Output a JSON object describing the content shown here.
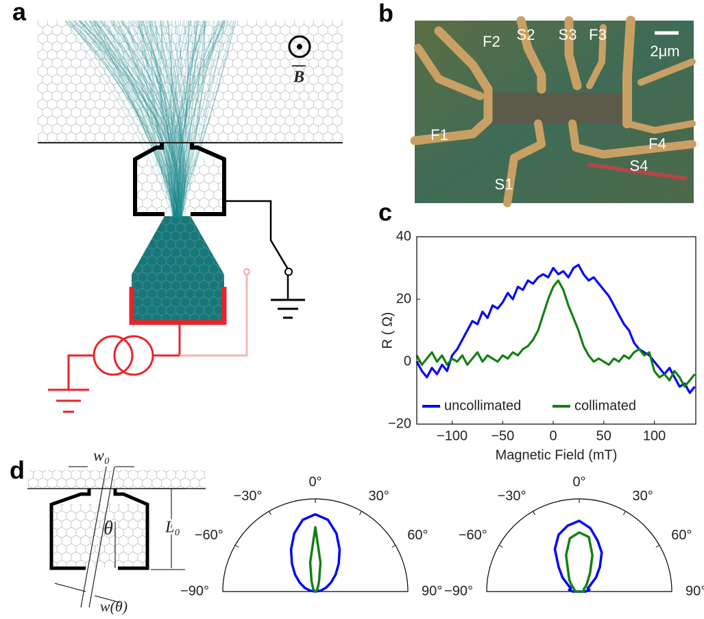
{
  "figure": {
    "panel_labels": [
      "a",
      "b",
      "c",
      "d"
    ],
    "panel_a": {
      "field_label": "B"
    },
    "panel_b": {
      "labels": [
        "F2",
        "S2",
        "S3",
        "F3",
        "F1",
        "F4",
        "S4",
        "S1"
      ],
      "scale_bar": "2μm"
    },
    "panel_d": {
      "width_top": "w₀",
      "length": "L₀",
      "angle": "θ",
      "width_angle": "w(θ)"
    }
  },
  "chart_data": [
    {
      "type": "line",
      "x_label": "Magnetic Field (mT)",
      "y_label": "R ( Ω)",
      "x": [
        -135,
        -130,
        -125,
        -120,
        -115,
        -110,
        -105,
        -100,
        -95,
        -90,
        -85,
        -80,
        -75,
        -70,
        -65,
        -60,
        -55,
        -50,
        -45,
        -40,
        -35,
        -30,
        -25,
        -20,
        -15,
        -10,
        -5,
        0,
        5,
        10,
        15,
        20,
        25,
        30,
        35,
        40,
        45,
        50,
        55,
        60,
        65,
        70,
        75,
        80,
        85,
        90,
        95,
        100,
        105,
        110,
        115,
        120,
        125,
        130,
        135,
        140
      ],
      "series": [
        {
          "name": "uncollimated",
          "color": "#0000ff",
          "values": [
            0,
            -3,
            -5,
            -2,
            -4,
            -1,
            -3,
            2,
            4,
            7,
            10,
            13,
            12,
            16,
            14,
            18,
            17,
            19,
            22,
            20,
            24,
            23,
            26,
            25,
            27,
            28,
            27,
            30,
            28,
            29,
            27,
            30,
            31,
            28,
            26,
            27,
            25,
            23,
            21,
            18,
            15,
            12,
            10,
            6,
            4,
            3,
            2,
            0,
            -2,
            -4,
            -2,
            -5,
            -8,
            -7,
            -10,
            -8
          ]
        },
        {
          "name": "collimated",
          "color": "#138013",
          "values": [
            2,
            -1,
            1,
            3,
            0,
            2,
            -1,
            1,
            0,
            2,
            -1,
            1,
            3,
            0,
            2,
            1,
            0,
            2,
            1,
            3,
            2,
            4,
            5,
            7,
            10,
            15,
            20,
            24,
            26,
            23,
            18,
            14,
            10,
            5,
            2,
            0,
            1,
            0,
            -1,
            1,
            0,
            2,
            1,
            3,
            4,
            2,
            3,
            -3,
            -5,
            -4,
            -6,
            -3,
            -5,
            -8,
            -6,
            -4
          ]
        }
      ],
      "xlim": [
        -135,
        141
      ],
      "ylim": [
        -20,
        40
      ],
      "xticks": [
        {
          "value": -100,
          "label": "−100"
        },
        {
          "value": -50,
          "label": "−50"
        },
        0,
        50,
        100
      ],
      "yticks": [
        {
          "value": -20,
          "label": "−20"
        },
        0,
        20,
        40
      ],
      "legend": "bottom"
    },
    {
      "type": "polar",
      "theta": [
        -90,
        -80,
        -70,
        -60,
        -50,
        -40,
        -30,
        -20,
        -10,
        0,
        10,
        20,
        30,
        40,
        50,
        60,
        70,
        80,
        90
      ],
      "series": [
        {
          "color": "#0000ff",
          "values": [
            0,
            0.043,
            0.089,
            0.141,
            0.206,
            0.284,
            0.378,
            0.481,
            0.566,
            0.6,
            0.566,
            0.481,
            0.378,
            0.284,
            0.206,
            0.141,
            0.089,
            0.043,
            0
          ]
        },
        {
          "color": "#138013",
          "values": [
            0,
            0.002,
            0.005,
            0.009,
            0.014,
            0.023,
            0.041,
            0.086,
            0.229,
            0.5,
            0.229,
            0.086,
            0.041,
            0.023,
            0.014,
            0.009,
            0.005,
            0.002,
            0
          ]
        }
      ],
      "rlim": [
        0,
        0.72
      ],
      "thetaticks": [
        {
          "value": -90,
          "label": "−90°"
        },
        {
          "value": -60,
          "label": "−60°"
        },
        {
          "value": -30,
          "label": "−30°"
        },
        {
          "value": 0,
          "label": "0°"
        },
        {
          "value": 30,
          "label": "30°"
        },
        {
          "value": 60,
          "label": "60°"
        },
        {
          "value": 90,
          "label": "90°"
        }
      ]
    },
    {
      "type": "polar",
      "theta": [
        -90,
        -80,
        -70,
        -60,
        -50,
        -40,
        -30,
        -20,
        -10,
        0,
        10,
        20,
        30,
        40,
        50,
        60,
        70,
        80,
        90
      ],
      "series": [
        {
          "color": "#0000ff",
          "values": [
            0.05,
            0.08,
            0.07,
            0.1,
            0.17,
            0.25,
            0.38,
            0.47,
            0.52,
            0.55,
            0.5,
            0.42,
            0.35,
            0.25,
            0.17,
            0.1,
            0.07,
            0.08,
            0.05
          ]
        },
        {
          "color": "#138013",
          "values": [
            0.03,
            0.04,
            0.04,
            0.05,
            0.08,
            0.12,
            0.17,
            0.3,
            0.42,
            0.46,
            0.43,
            0.3,
            0.17,
            0.1,
            0.07,
            0.04,
            0.04,
            0.04,
            0.03
          ]
        }
      ],
      "rlim": [
        0,
        0.72
      ],
      "thetaticks": [
        {
          "value": -90,
          "label": "−90°"
        },
        {
          "value": -60,
          "label": "−60°"
        },
        {
          "value": -30,
          "label": "−30°"
        },
        {
          "value": 0,
          "label": "0°"
        },
        {
          "value": 30,
          "label": "30°"
        },
        {
          "value": 60,
          "label": "60°"
        },
        {
          "value": 90,
          "label": "90°"
        }
      ]
    }
  ]
}
